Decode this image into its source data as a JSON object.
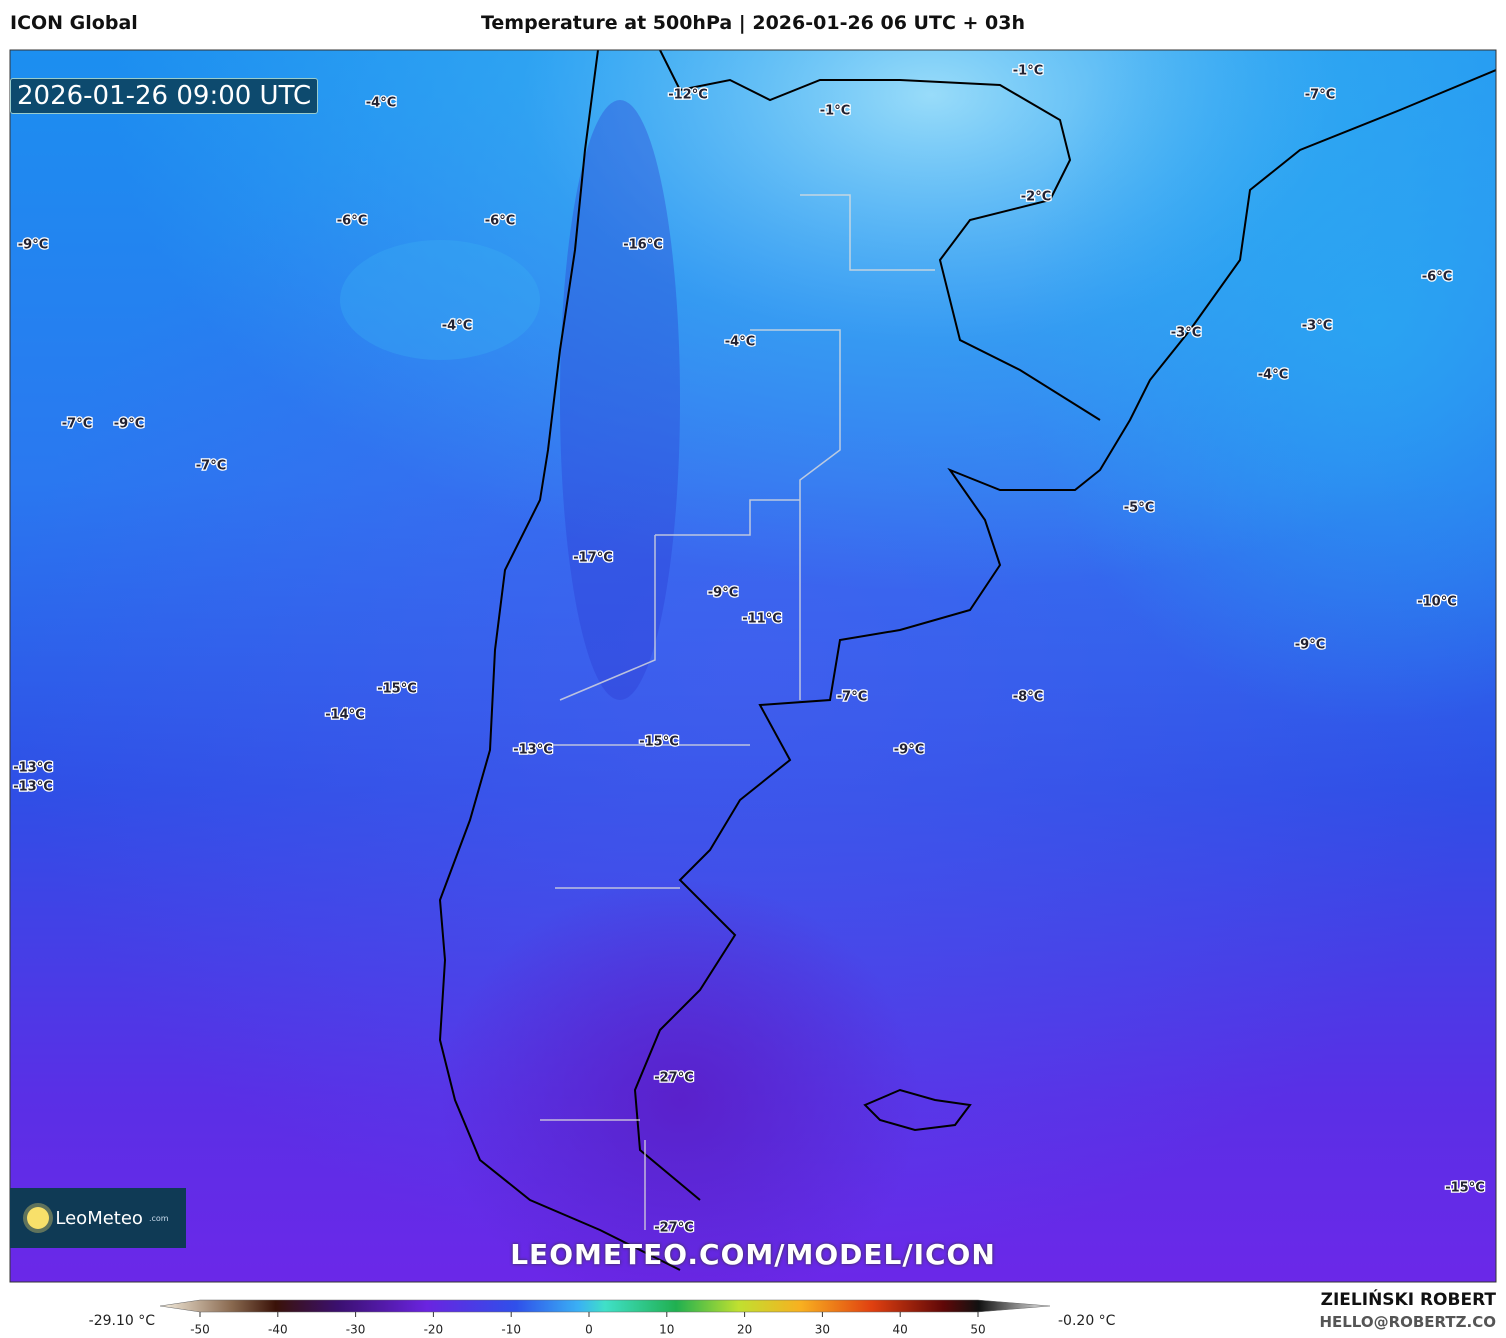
{
  "header": {
    "model": "ICON Global",
    "title": "Temperature at 500hPa | 2026-01-26 06 UTC + 03h",
    "valid_time": "2026-01-26 09:00 UTC"
  },
  "map_labels": [
    "-4°C",
    "-12°C",
    "-1°C",
    "-1°C",
    "-7°C",
    "-6°C",
    "-6°C",
    "-9°C",
    "-16°C",
    "-2°C",
    "-6°C",
    "-4°C",
    "-4°C",
    "-3°C",
    "-3°C",
    "-4°C",
    "-7°C",
    "-9°C",
    "-7°C",
    "-5°C",
    "-17°C",
    "-9°C",
    "-11°C",
    "-10°C",
    "-9°C",
    "-15°C",
    "-7°C",
    "-8°C",
    "-14°C",
    "-15°C",
    "-13°C",
    "-9°C",
    "-13°C",
    "-13°C",
    "-27°C",
    "-15°C",
    "-27°C"
  ],
  "colorbar": {
    "min_label": "-29.10 °C",
    "max_label": "-0.20 °C",
    "ticks": [
      -50,
      -40,
      -30,
      -20,
      -10,
      0,
      10,
      20,
      30,
      40,
      50
    ]
  },
  "branding": {
    "logo": "LeoMeteo",
    "logo_suffix": ".com",
    "watermark": "LEOMETEO.COM/MODEL/ICON"
  },
  "footer": {
    "author": "ZIELIŃSKI ROBERT",
    "email": "HELLO@ROBERTZ.CO"
  }
}
